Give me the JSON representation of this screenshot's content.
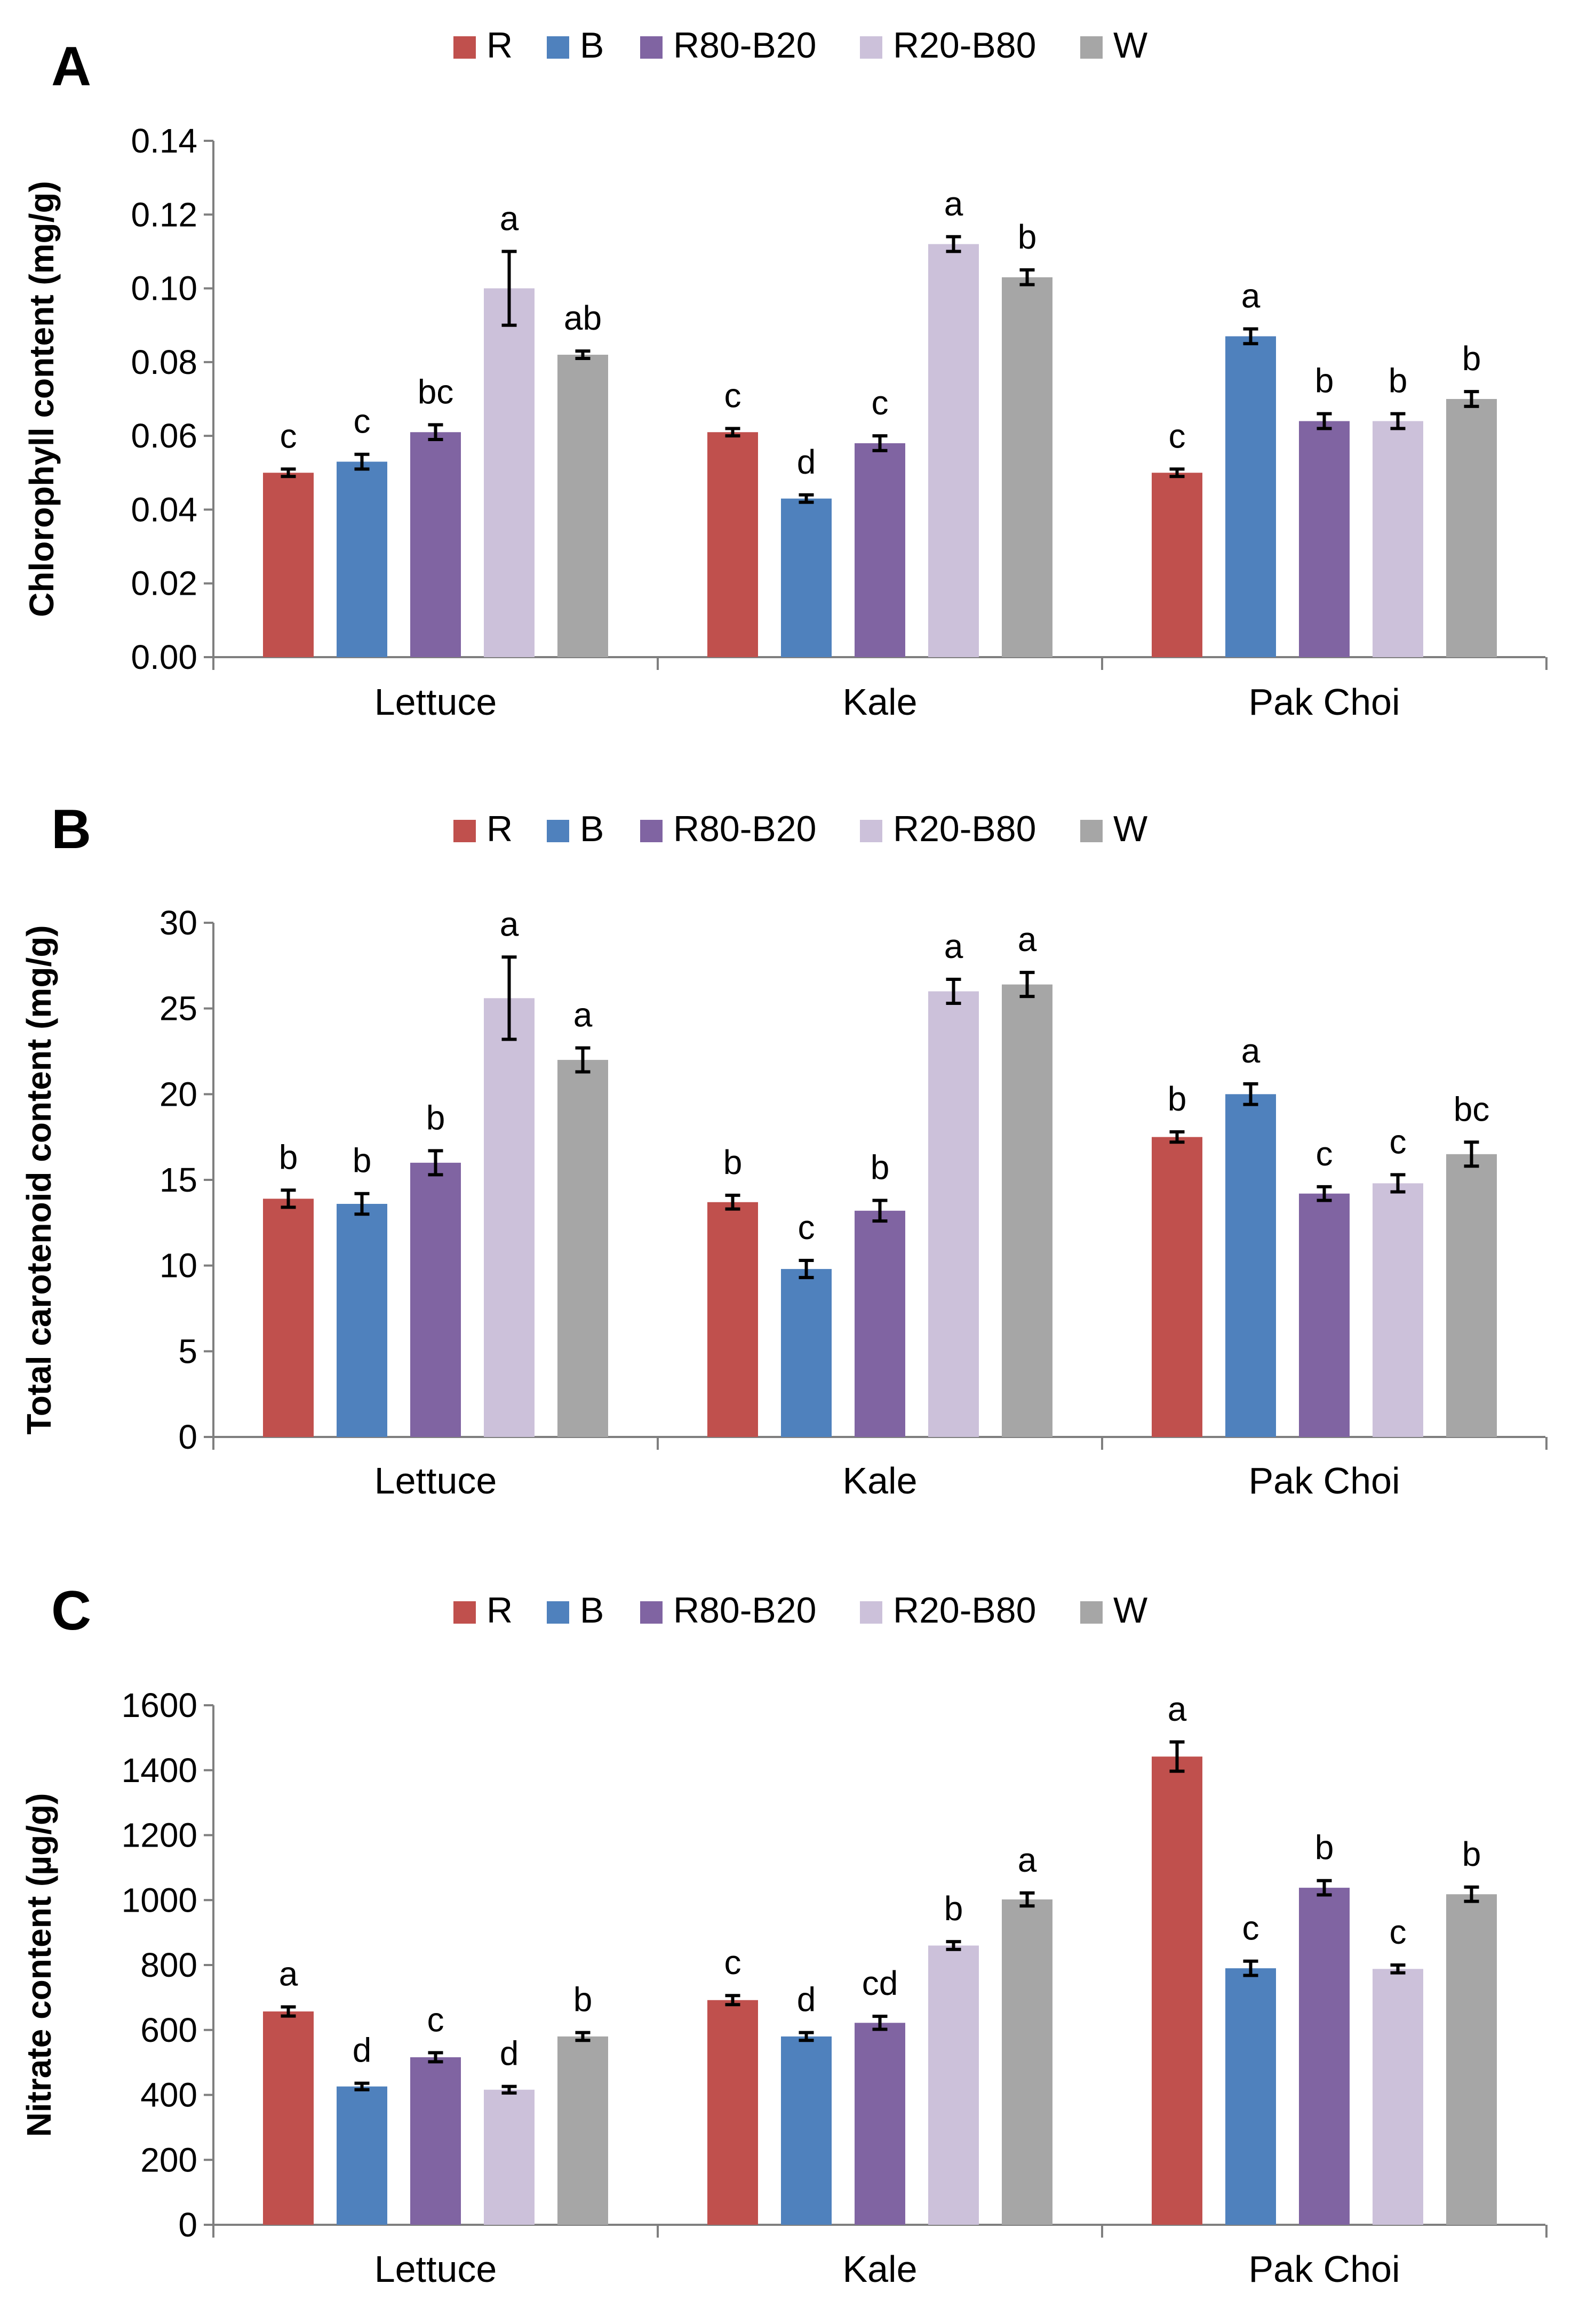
{
  "colors": {
    "R": "#c0504d",
    "B": "#4f81bd",
    "R80-B20": "#8064a2",
    "R20-B80": "#ccc1da",
    "W": "#a6a6a6"
  },
  "chart_data": [
    {
      "type": "bar",
      "panel_label": "A",
      "ylabel": "Chlorophyll content (mg/g)",
      "ylim": [
        0,
        0.14
      ],
      "yticks": [
        "0.00",
        "0.02",
        "0.04",
        "0.06",
        "0.08",
        "0.10",
        "0.12",
        "0.14"
      ],
      "categories": [
        "Lettuce",
        "Kale",
        "Pak Choi"
      ],
      "legend_position": "top-center",
      "series": [
        {
          "name": "R",
          "color": "#c0504d",
          "values": [
            0.05,
            0.061,
            0.05
          ],
          "errors": [
            0.001,
            0.001,
            0.001
          ],
          "letters": [
            "c",
            "c",
            "c"
          ]
        },
        {
          "name": "B",
          "color": "#4f81bd",
          "values": [
            0.053,
            0.043,
            0.087
          ],
          "errors": [
            0.002,
            0.001,
            0.002
          ],
          "letters": [
            "c",
            "d",
            "a"
          ]
        },
        {
          "name": "R80-B20",
          "color": "#8064a2",
          "values": [
            0.061,
            0.058,
            0.064
          ],
          "errors": [
            0.002,
            0.002,
            0.002
          ],
          "letters": [
            "bc",
            "c",
            "b"
          ]
        },
        {
          "name": "R20-B80",
          "color": "#ccc1da",
          "values": [
            0.1,
            0.112,
            0.064
          ],
          "errors": [
            0.01,
            0.002,
            0.002
          ],
          "letters": [
            "a",
            "a",
            "b"
          ]
        },
        {
          "name": "W",
          "color": "#a6a6a6",
          "values": [
            0.082,
            0.103,
            0.07
          ],
          "errors": [
            0.001,
            0.002,
            0.002
          ],
          "letters": [
            "ab",
            "b",
            "b"
          ]
        }
      ]
    },
    {
      "type": "bar",
      "panel_label": "B",
      "ylabel": "Total carotenoid content (mg/g)",
      "ylim": [
        0,
        30
      ],
      "yticks": [
        "0",
        "5",
        "10",
        "15",
        "20",
        "25",
        "30"
      ],
      "categories": [
        "Lettuce",
        "Kale",
        "Pak Choi"
      ],
      "legend_position": "top-center",
      "series": [
        {
          "name": "R",
          "color": "#c0504d",
          "values": [
            13.9,
            13.7,
            17.5
          ],
          "errors": [
            0.5,
            0.4,
            0.3
          ],
          "letters": [
            "b",
            "b",
            "b"
          ]
        },
        {
          "name": "B",
          "color": "#4f81bd",
          "values": [
            13.6,
            9.8,
            20.0
          ],
          "errors": [
            0.6,
            0.5,
            0.6
          ],
          "letters": [
            "b",
            "c",
            "a"
          ]
        },
        {
          "name": "R80-B20",
          "color": "#8064a2",
          "values": [
            16.0,
            13.2,
            14.2
          ],
          "errors": [
            0.7,
            0.6,
            0.4
          ],
          "letters": [
            "b",
            "b",
            "c"
          ]
        },
        {
          "name": "R20-B80",
          "color": "#ccc1da",
          "values": [
            25.6,
            26.0,
            14.8
          ],
          "errors": [
            2.4,
            0.7,
            0.5
          ],
          "letters": [
            "a",
            "a",
            "c"
          ]
        },
        {
          "name": "W",
          "color": "#a6a6a6",
          "values": [
            22.0,
            26.4,
            16.5
          ],
          "errors": [
            0.7,
            0.7,
            0.7
          ],
          "letters": [
            "a",
            "a",
            "bc"
          ]
        }
      ]
    },
    {
      "type": "bar",
      "panel_label": "C",
      "ylabel": "Nitrate content (µg/g)",
      "ylim": [
        0,
        1600
      ],
      "yticks": [
        "0",
        "200",
        "400",
        "600",
        "800",
        "1000",
        "1200",
        "1400",
        "1600"
      ],
      "categories": [
        "Lettuce",
        "Kale",
        "Pak Choi"
      ],
      "legend_position": "top-center",
      "series": [
        {
          "name": "R",
          "color": "#c0504d",
          "values": [
            657,
            692,
            1442
          ],
          "errors": [
            14,
            14,
            45
          ],
          "letters": [
            "a",
            "c",
            "a"
          ]
        },
        {
          "name": "B",
          "color": "#4f81bd",
          "values": [
            426,
            580,
            790
          ],
          "errors": [
            10,
            12,
            22
          ],
          "letters": [
            "d",
            "d",
            "c"
          ]
        },
        {
          "name": "R80-B20",
          "color": "#8064a2",
          "values": [
            516,
            622,
            1038
          ],
          "errors": [
            14,
            20,
            22
          ],
          "letters": [
            "c",
            "cd",
            "b"
          ]
        },
        {
          "name": "R20-B80",
          "color": "#ccc1da",
          "values": [
            416,
            860,
            788
          ],
          "errors": [
            10,
            12,
            12
          ],
          "letters": [
            "d",
            "b",
            "c"
          ]
        },
        {
          "name": "W",
          "color": "#a6a6a6",
          "values": [
            580,
            1002,
            1018
          ],
          "errors": [
            12,
            20,
            22
          ],
          "letters": [
            "b",
            "a",
            "b"
          ]
        }
      ]
    }
  ]
}
